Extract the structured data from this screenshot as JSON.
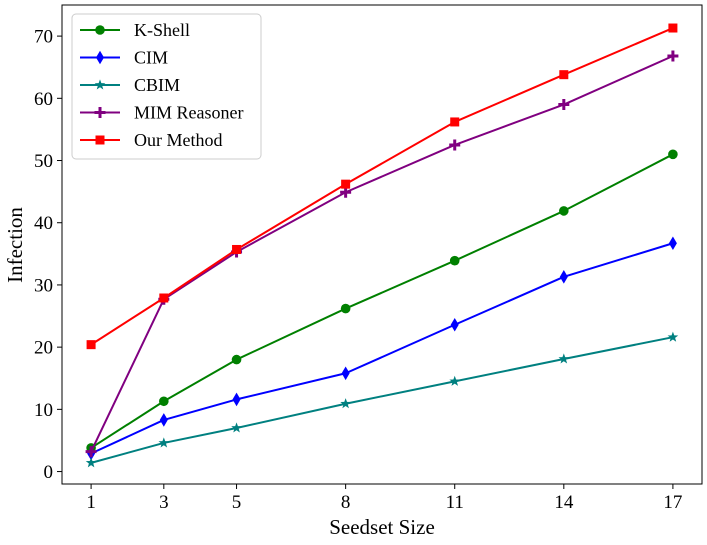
{
  "chart_data": {
    "type": "line",
    "title": "",
    "xlabel": "Seedset Size",
    "ylabel": "Infection",
    "x": [
      1,
      3,
      5,
      8,
      11,
      14,
      17
    ],
    "xticks": [
      "1",
      "3",
      "5",
      "8",
      "11",
      "14",
      "17"
    ],
    "yticks": [
      "0",
      "10",
      "20",
      "30",
      "40",
      "50",
      "60",
      "70"
    ],
    "xlim": [
      0.2,
      17.8
    ],
    "ylim": [
      -2,
      75
    ],
    "grid": false,
    "legend_position": "top-left",
    "series": [
      {
        "name": "K-Shell",
        "color": "#008000",
        "marker": "circle",
        "values": [
          3.8,
          11.3,
          18.0,
          26.2,
          33.9,
          41.9,
          51.0
        ]
      },
      {
        "name": "CIM",
        "color": "#0000ff",
        "marker": "thin-diamond",
        "values": [
          2.9,
          8.3,
          11.6,
          15.8,
          23.6,
          31.3,
          36.7
        ]
      },
      {
        "name": "CBIM",
        "color": "#008080",
        "marker": "star",
        "values": [
          1.4,
          4.6,
          7.0,
          10.9,
          14.5,
          18.1,
          21.6
        ]
      },
      {
        "name": "MIM Reasoner",
        "color": "#800080",
        "marker": "plus",
        "values": [
          3.2,
          27.7,
          35.3,
          44.9,
          52.5,
          59.0,
          66.8
        ]
      },
      {
        "name": "Our Method",
        "color": "#ff0000",
        "marker": "square",
        "values": [
          20.4,
          27.9,
          35.7,
          46.2,
          56.2,
          63.8,
          71.3
        ]
      }
    ]
  }
}
